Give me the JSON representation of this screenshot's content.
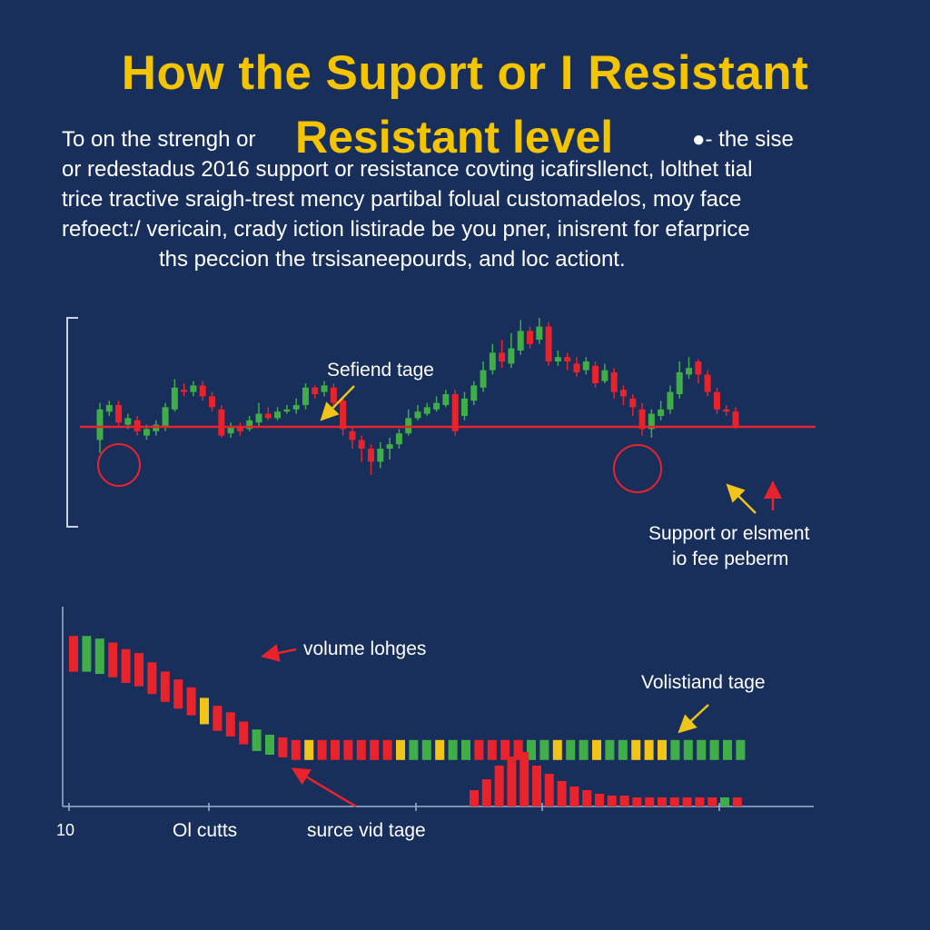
{
  "title": "How the Suport or I Resistant",
  "subtitle": "Resistant  level",
  "description_lines": [
    "To on the strengh or",
    "●- the sise",
    "or redestadus 2016 support or resistance covting icafirsllenct, lolthet  tial",
    "trice tractive sraigh-trest mency partibal  folual customadelos, moy face",
    "refoect:/ vericain, crady iction listirade be you pner,  inisrent for efarprice",
    "ths peccion the trsisaneepourds, and loc actiont."
  ],
  "colors": {
    "background": "#182f5c",
    "title": "#f5c400",
    "bull": "#3fae46",
    "bear": "#e8232b",
    "neutral": "#f0c419",
    "support_line": "#e8232b",
    "axis": "#9fb0cc",
    "arrow_yellow": "#f0c419",
    "arrow_red": "#e8232b"
  },
  "annotations": {
    "top_label": "Sefiend tage",
    "support_label_1": "Support or elsment",
    "support_label_2": "io fee peberm",
    "volume_label": "volume lohges",
    "volume_right_label": "Volistiand tage",
    "x_label_1": "10",
    "x_label_2": "Ol cutts",
    "x_label_3": "surce vid tage"
  },
  "chart_data": [
    {
      "type": "candlestick",
      "support_level": 50,
      "ylim": [
        0,
        100
      ],
      "markers": [
        "support touch circles at candle 2 and candle 47",
        "arrow to support at last candle"
      ],
      "candles": [
        {
          "o": 44,
          "c": 58,
          "h": 61,
          "l": 38
        },
        {
          "o": 57,
          "c": 60,
          "h": 62,
          "l": 55
        },
        {
          "o": 60,
          "c": 52,
          "h": 62,
          "l": 50
        },
        {
          "o": 51,
          "c": 54,
          "h": 56,
          "l": 49
        },
        {
          "o": 53,
          "c": 48,
          "h": 55,
          "l": 46
        },
        {
          "o": 46,
          "c": 49,
          "h": 51,
          "l": 44
        },
        {
          "o": 48,
          "c": 51,
          "h": 53,
          "l": 46
        },
        {
          "o": 50,
          "c": 59,
          "h": 61,
          "l": 48
        },
        {
          "o": 58,
          "c": 68,
          "h": 72,
          "l": 57
        },
        {
          "o": 67,
          "c": 66,
          "h": 70,
          "l": 64
        },
        {
          "o": 66,
          "c": 69,
          "h": 71,
          "l": 64
        },
        {
          "o": 69,
          "c": 64,
          "h": 71,
          "l": 62
        },
        {
          "o": 64,
          "c": 59,
          "h": 66,
          "l": 57
        },
        {
          "o": 58,
          "c": 46,
          "h": 60,
          "l": 45
        },
        {
          "o": 47,
          "c": 50,
          "h": 52,
          "l": 45
        },
        {
          "o": 50,
          "c": 48,
          "h": 52,
          "l": 46
        },
        {
          "o": 49,
          "c": 53,
          "h": 55,
          "l": 48
        },
        {
          "o": 52,
          "c": 56,
          "h": 61,
          "l": 50
        },
        {
          "o": 56,
          "c": 54,
          "h": 59,
          "l": 53
        },
        {
          "o": 54,
          "c": 57,
          "h": 59,
          "l": 53
        },
        {
          "o": 57,
          "c": 58,
          "h": 60,
          "l": 56
        },
        {
          "o": 58,
          "c": 60,
          "h": 63,
          "l": 56
        },
        {
          "o": 60,
          "c": 68,
          "h": 70,
          "l": 58
        },
        {
          "o": 68,
          "c": 65,
          "h": 69,
          "l": 63
        },
        {
          "o": 66,
          "c": 69,
          "h": 71,
          "l": 64
        },
        {
          "o": 68,
          "c": 61,
          "h": 70,
          "l": 59
        },
        {
          "o": 62,
          "c": 49,
          "h": 64,
          "l": 46
        },
        {
          "o": 48,
          "c": 44,
          "h": 50,
          "l": 40
        },
        {
          "o": 44,
          "c": 40,
          "h": 46,
          "l": 34
        },
        {
          "o": 40,
          "c": 34,
          "h": 42,
          "l": 28
        },
        {
          "o": 34,
          "c": 40,
          "h": 43,
          "l": 31
        },
        {
          "o": 40,
          "c": 42,
          "h": 45,
          "l": 35
        },
        {
          "o": 42,
          "c": 47,
          "h": 49,
          "l": 40
        },
        {
          "o": 47,
          "c": 54,
          "h": 58,
          "l": 46
        },
        {
          "o": 54,
          "c": 57,
          "h": 60,
          "l": 53
        },
        {
          "o": 56,
          "c": 59,
          "h": 61,
          "l": 55
        },
        {
          "o": 58,
          "c": 61,
          "h": 64,
          "l": 57
        },
        {
          "o": 60,
          "c": 65,
          "h": 67,
          "l": 59
        },
        {
          "o": 65,
          "c": 48,
          "h": 67,
          "l": 46
        },
        {
          "o": 55,
          "c": 63,
          "h": 66,
          "l": 53
        },
        {
          "o": 62,
          "c": 69,
          "h": 71,
          "l": 60
        },
        {
          "o": 68,
          "c": 76,
          "h": 80,
          "l": 66
        },
        {
          "o": 76,
          "c": 84,
          "h": 88,
          "l": 74
        },
        {
          "o": 84,
          "c": 80,
          "h": 90,
          "l": 77
        },
        {
          "o": 79,
          "c": 86,
          "h": 93,
          "l": 77
        },
        {
          "o": 85,
          "c": 94,
          "h": 99,
          "l": 83
        },
        {
          "o": 94,
          "c": 88,
          "h": 96,
          "l": 86
        },
        {
          "o": 90,
          "c": 96,
          "h": 100,
          "l": 88
        },
        {
          "o": 96,
          "c": 80,
          "h": 98,
          "l": 78
        },
        {
          "o": 80,
          "c": 82,
          "h": 85,
          "l": 78
        },
        {
          "o": 82,
          "c": 80,
          "h": 84,
          "l": 76
        },
        {
          "o": 79,
          "c": 75,
          "h": 82,
          "l": 73
        },
        {
          "o": 76,
          "c": 80,
          "h": 82,
          "l": 74
        },
        {
          "o": 78,
          "c": 70,
          "h": 80,
          "l": 68
        },
        {
          "o": 71,
          "c": 76,
          "h": 79,
          "l": 70
        },
        {
          "o": 75,
          "c": 66,
          "h": 77,
          "l": 63
        },
        {
          "o": 67,
          "c": 64,
          "h": 69,
          "l": 60
        },
        {
          "o": 63,
          "c": 59,
          "h": 65,
          "l": 55
        },
        {
          "o": 58,
          "c": 49,
          "h": 61,
          "l": 46
        },
        {
          "o": 49,
          "c": 56,
          "h": 58,
          "l": 45
        },
        {
          "o": 55,
          "c": 58,
          "h": 62,
          "l": 53
        },
        {
          "o": 58,
          "c": 66,
          "h": 69,
          "l": 56
        },
        {
          "o": 65,
          "c": 75,
          "h": 80,
          "l": 63
        },
        {
          "o": 74,
          "c": 77,
          "h": 82,
          "l": 72
        },
        {
          "o": 80,
          "c": 74,
          "h": 81,
          "l": 70
        },
        {
          "o": 74,
          "c": 66,
          "h": 76,
          "l": 64
        },
        {
          "o": 66,
          "c": 58,
          "h": 68,
          "l": 56
        },
        {
          "o": 58,
          "c": 57,
          "h": 60,
          "l": 55
        },
        {
          "o": 57,
          "c": 50,
          "h": 59,
          "l": 49
        }
      ]
    },
    {
      "type": "bar",
      "title": "",
      "ylim": [
        0,
        100
      ],
      "upper_strip": {
        "values": [
          95,
          95,
          93,
          90,
          85,
          82,
          75,
          68,
          62,
          56,
          48,
          42,
          37,
          30,
          24,
          20,
          18,
          16,
          16,
          16,
          16,
          16,
          16,
          16,
          16,
          16,
          16,
          16,
          16,
          16,
          16,
          16,
          16,
          16,
          16,
          16,
          16,
          16,
          16,
          16,
          16,
          16,
          16,
          16,
          16,
          16,
          16,
          16,
          16,
          16,
          16,
          16
        ],
        "colors": [
          "bear",
          "bull",
          "bull",
          "bear",
          "bear",
          "bear",
          "bear",
          "bear",
          "bear",
          "bear",
          "neutral",
          "bear",
          "bear",
          "bear",
          "bull",
          "bull",
          "bear",
          "bear",
          "neutral",
          "bear",
          "bear",
          "bear",
          "bear",
          "bear",
          "bear",
          "neutral",
          "bull",
          "bull",
          "neutral",
          "bull",
          "bull",
          "bear",
          "bear",
          "bear",
          "bear",
          "bull",
          "bull",
          "neutral",
          "bull",
          "bull",
          "neutral",
          "bull",
          "bull",
          "neutral",
          "neutral",
          "neutral",
          "bull",
          "bull",
          "bull",
          "bull",
          "bull",
          "bull"
        ]
      },
      "lower_strip": {
        "values": [
          18,
          30,
          45,
          55,
          60,
          45,
          36,
          28,
          22,
          18,
          14,
          12,
          12,
          10,
          10,
          10,
          10,
          10,
          10,
          10,
          10,
          10
        ],
        "colors": [
          "bear",
          "bear",
          "bear",
          "bear",
          "bear",
          "bear",
          "bear",
          "bear",
          "bear",
          "bear",
          "bear",
          "bear",
          "bear",
          "bear",
          "bear",
          "bear",
          "bear",
          "bear",
          "bear",
          "bear",
          "bull",
          "bear"
        ]
      }
    }
  ]
}
